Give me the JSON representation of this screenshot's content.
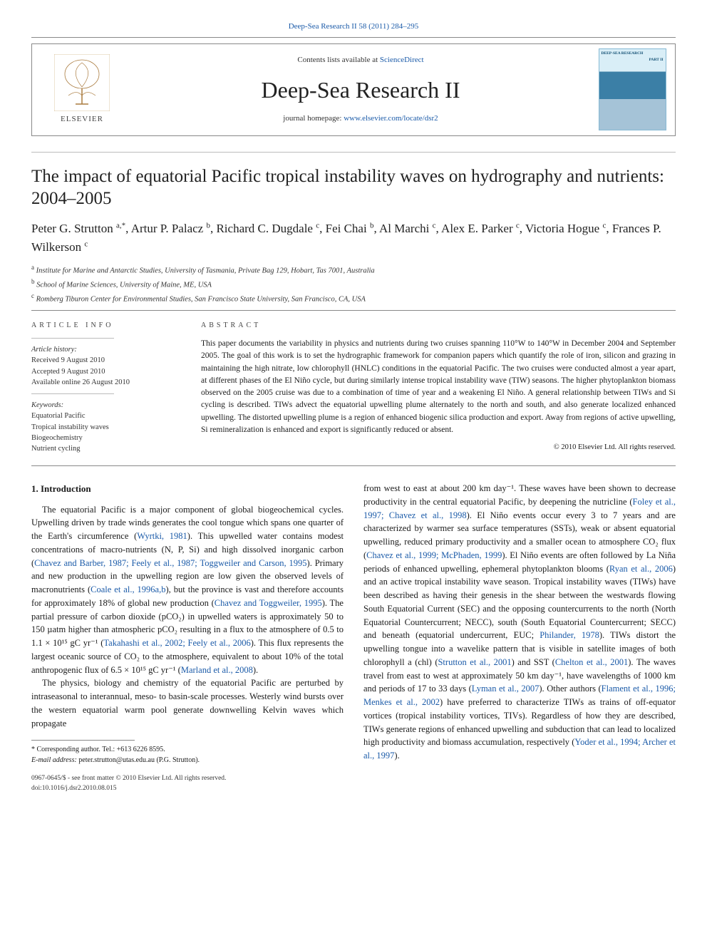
{
  "top_journal_link": "Deep-Sea Research II 58 (2011) 284–295",
  "header": {
    "publisher_name": "ELSEVIER",
    "contents_prefix": "Contents lists available at ",
    "contents_link": "ScienceDirect",
    "journal_name": "Deep-Sea Research II",
    "homepage_prefix": "journal homepage: ",
    "homepage_link": "www.elsevier.com/locate/dsr2",
    "cover_title": "DEEP-SEA RESEARCH",
    "cover_part": "PART II"
  },
  "article": {
    "title": "The impact of equatorial Pacific tropical instability waves on hydrography and nutrients: 2004–2005",
    "authors_html": "Peter G. Strutton <sup>a,*</sup>, Artur P. Palacz <sup>b</sup>, Richard C. Dugdale <sup>c</sup>, Fei Chai <sup>b</sup>, Al Marchi <sup>c</sup>, Alex E. Parker <sup>c</sup>, Victoria Hogue <sup>c</sup>, Frances P. Wilkerson <sup>c</sup>",
    "affiliations": [
      {
        "sup": "a",
        "text": "Institute for Marine and Antarctic Studies, University of Tasmania, Private Bag 129, Hobart, Tas 7001, Australia"
      },
      {
        "sup": "b",
        "text": "School of Marine Sciences, University of Maine, ME, USA"
      },
      {
        "sup": "c",
        "text": "Romberg Tiburon Center for Environmental Studies, San Francisco State University, San Francisco, CA, USA"
      }
    ]
  },
  "article_info": {
    "heading": "ARTICLE INFO",
    "history_label": "Article history:",
    "history": [
      "Received 9 August 2010",
      "Accepted 9 August 2010",
      "Available online 26 August 2010"
    ],
    "keywords_label": "Keywords:",
    "keywords": [
      "Equatorial Pacific",
      "Tropical instability waves",
      "Biogeochemistry",
      "Nutrient cycling"
    ]
  },
  "abstract": {
    "heading": "ABSTRACT",
    "text": "This paper documents the variability in physics and nutrients during two cruises spanning 110°W to 140°W in December 2004 and September 2005. The goal of this work is to set the hydrographic framework for companion papers which quantify the role of iron, silicon and grazing in maintaining the high nitrate, low chlorophyll (HNLC) conditions in the equatorial Pacific. The two cruises were conducted almost a year apart, at different phases of the El Niño cycle, but during similarly intense tropical instability wave (TIW) seasons. The higher phytoplankton biomass observed on the 2005 cruise was due to a combination of time of year and a weakening El Niño. A general relationship between TIWs and Si cycling is described. TIWs advect the equatorial upwelling plume alternately to the north and south, and also generate localized enhanced upwelling. The distorted upwelling plume is a region of enhanced biogenic silica production and export. Away from regions of active upwelling, Si remineralization is enhanced and export is significantly reduced or absent.",
    "copyright": "© 2010 Elsevier Ltd. All rights reserved."
  },
  "intro": {
    "heading": "1. Introduction",
    "p1_a": "The equatorial Pacific is a major component of global biogeochemical cycles. Upwelling driven by trade winds generates the cool tongue which spans one quarter of the Earth's circumference (",
    "p1_ref1": "Wyrtki, 1981",
    "p1_b": "). This upwelled water contains modest concentrations of macro-nutrients (N, P, Si) and high dissolved inorganic carbon (",
    "p1_ref2": "Chavez and Barber, 1987; Feely et al., 1987; Toggweiler and Carson, 1995",
    "p1_c": "). Primary and new production in the upwelling region are low given the observed levels of macronutrients (",
    "p1_ref3": "Coale et al., 1996a,b",
    "p1_d": "), but the province is vast and therefore accounts for approximately 18% of global new production (",
    "p1_ref4": "Chavez and Toggweiler, 1995",
    "p1_e": "). The partial pressure of carbon dioxide (pCO₂) in upwelled waters is approximately 50 to 150 µatm higher than atmospheric pCO₂ resulting in a flux to the atmosphere of 0.5 to 1.1 × 10¹⁵ gC yr⁻¹ (",
    "p1_ref5": "Takahashi et al., 2002; Feely et al., 2006",
    "p1_f": "). This flux represents the largest oceanic source of CO₂ to the atmosphere, equivalent to about 10% of the total anthropogenic flux of 6.5 × 10¹⁵ gC yr⁻¹ (",
    "p1_ref6": "Marland et al., 2008",
    "p1_g": ").",
    "p2_a": "The physics, biology and chemistry of the equatorial Pacific are perturbed by intraseasonal to interannual, meso- to basin-scale processes. Westerly wind bursts over the western equatorial warm pool generate downwelling Kelvin waves which propagate",
    "p2_b": "from west to east at about 200 km day⁻¹. These waves have been shown to decrease productivity in the central equatorial Pacific, by deepening the nutricline (",
    "p2_ref1": "Foley et al., 1997; Chavez et al., 1998",
    "p2_c": "). El Niño events occur every 3 to 7 years and are characterized by warmer sea surface temperatures (SSTs), weak or absent equatorial upwelling, reduced primary productivity and a smaller ocean to atmosphere CO₂ flux (",
    "p2_ref2": "Chavez et al., 1999; McPhaden, 1999",
    "p2_d": "). El Niño events are often followed by La Niña periods of enhanced upwelling, ephemeral phytoplankton blooms (",
    "p2_ref3": "Ryan et al., 2006",
    "p2_e": ") and an active tropical instability wave season. Tropical instability waves (TIWs) have been described as having their genesis in the shear between the westwards flowing South Equatorial Current (SEC) and the opposing countercurrents to the north (North Equatorial Countercurrent; NECC), south (South Equatorial Countercurrent; SECC) and beneath (equatorial undercurrent, EUC; ",
    "p2_ref4": "Philander, 1978",
    "p2_f": "). TIWs distort the upwelling tongue into a wavelike pattern that is visible in satellite images of both chlorophyll a (chl) (",
    "p2_ref5": "Strutton et al., 2001",
    "p2_g": ") and SST (",
    "p2_ref6": "Chelton et al., 2001",
    "p2_h": "). The waves travel from east to west at approximately 50 km day⁻¹, have wavelengths of 1000 km and periods of 17 to 33 days (",
    "p2_ref7": "Lyman et al., 2007",
    "p2_i": "). Other authors (",
    "p2_ref8": "Flament et al., 1996; Menkes et al., 2002",
    "p2_j": ") have preferred to characterize TIWs as trains of off-equator vortices (tropical instability vortices, TIVs). Regardless of how they are described, TIWs generate regions of enhanced upwelling and subduction that can lead to localized high productivity and biomass accumulation, respectively (",
    "p2_ref9": "Yoder et al., 1994; Archer et al., 1997",
    "p2_k": ")."
  },
  "footnotes": {
    "corr_label": "* Corresponding author. Tel.: +613 6226 8595.",
    "email_label": "E-mail address:",
    "email_value": "peter.strutton@utas.edu.au (P.G. Strutton)."
  },
  "bottom": {
    "line1": "0967-0645/$ - see front matter © 2010 Elsevier Ltd. All rights reserved.",
    "line2": "doi:10.1016/j.dsr2.2010.08.015"
  },
  "colors": {
    "link": "#1a5aa8",
    "rule": "#888888",
    "text": "#1a1a1a"
  }
}
